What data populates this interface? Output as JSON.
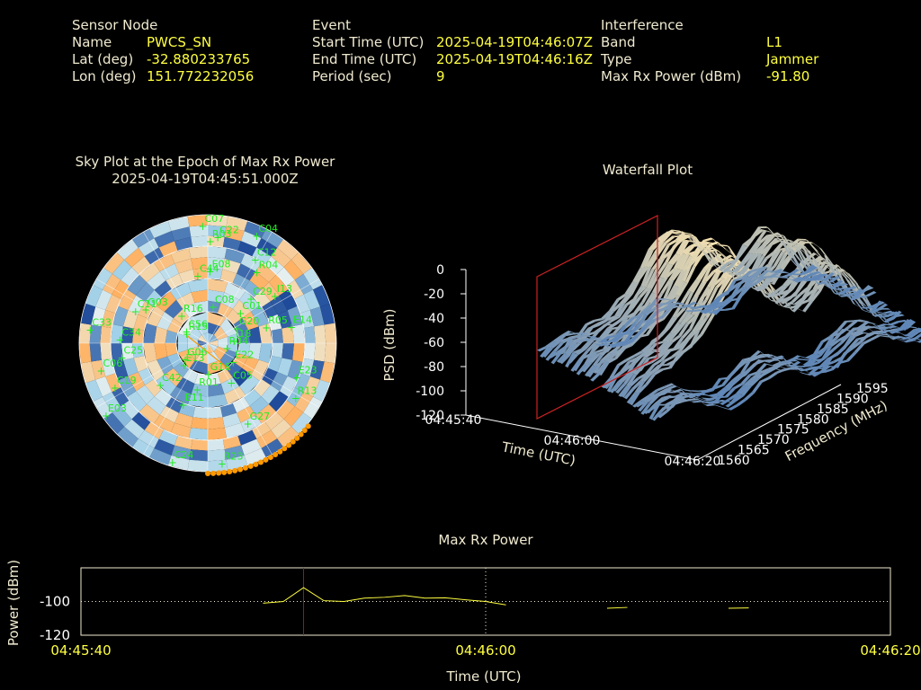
{
  "header": {
    "sensor": {
      "heading": "Sensor Node",
      "rows": [
        {
          "label": "Name",
          "value": "PWCS_SN"
        },
        {
          "label": "Lat (deg)",
          "value": "-32.880233765"
        },
        {
          "label": "Lon (deg)",
          "value": "151.772232056"
        }
      ]
    },
    "event": {
      "heading": "Event",
      "rows": [
        {
          "label": "Start Time (UTC)",
          "value": "2025-04-19T04:46:07Z"
        },
        {
          "label": "End Time (UTC)",
          "value": "2025-04-19T04:46:16Z"
        },
        {
          "label": "Period (sec)",
          "value": "9"
        }
      ]
    },
    "interference": {
      "heading": "Interference",
      "rows": [
        {
          "label": "Band",
          "value": "L1"
        },
        {
          "label": "Type",
          "value": "Jammer"
        },
        {
          "label": "Max Rx Power (dBm)",
          "value": "-91.80"
        }
      ]
    }
  },
  "chart_data": [
    {
      "type": "scatter",
      "title": "Sky Plot at the Epoch of Max Rx Power",
      "subtitle": "2025-04-19T04:45:51.000Z",
      "satellites": [
        "G03",
        "E03",
        "C42",
        "R04",
        "C56",
        "I18",
        "E14",
        "C01",
        "E23",
        "C34",
        "R15",
        "C33",
        "C04",
        "C08",
        "R23",
        "R01",
        "C06",
        "R03",
        "E13",
        "C12",
        "C05",
        "C19",
        "I13",
        "C07",
        "C25",
        "R16",
        "E22",
        "G27",
        "C44",
        "E11",
        "R04",
        "G20",
        "R13",
        "C24",
        "G16",
        "E08",
        "C11",
        "R05",
        "G06",
        "C29",
        "C22"
      ],
      "colors": {
        "satellite": "#22ee22",
        "high": "#ffb060",
        "low": "#1e4a9a",
        "mid": "#a0d0e8",
        "marker": "#ff9900"
      }
    },
    {
      "type": "area",
      "title": "Waterfall Plot",
      "xlabel": "Time (UTC)",
      "ylabel": "Frequency (MHz)",
      "zlabel": "PSD (dBm)",
      "x_ticks": [
        "04:45:40",
        "04:46:00",
        "04:46:20"
      ],
      "y_ticks": [
        "1560",
        "1565",
        "1570",
        "1575",
        "1580",
        "1585",
        "1590",
        "1595"
      ],
      "z_ticks": [
        "0",
        "-20",
        "-40",
        "-60",
        "-80",
        "-100",
        "-120"
      ],
      "zlim": [
        -120,
        0
      ],
      "ylim": [
        1560,
        1595
      ],
      "colors": {
        "peak": "#f4e0b0",
        "low": "#4a7ab8",
        "marker": "#cc2222"
      }
    },
    {
      "type": "line",
      "title": "Max Rx Power",
      "xlabel": "Time (UTC)",
      "ylabel": "Power (dBm)",
      "x_ticks": [
        "04:45:40",
        "04:46:00",
        "04:46:20"
      ],
      "y_ticks": [
        "-100",
        "-120"
      ],
      "xlim": [
        0,
        40
      ],
      "ylim": [
        -120,
        -80
      ],
      "marker_time": 11,
      "series": [
        {
          "values": [
            [
              9,
              -101
            ],
            [
              10,
              -100
            ],
            [
              11,
              -91.8
            ],
            [
              12,
              -99.5
            ],
            [
              13,
              -100
            ],
            [
              14,
              -98
            ],
            [
              15,
              -97.5
            ],
            [
              16,
              -96.5
            ],
            [
              17,
              -98
            ],
            [
              18,
              -97.8
            ],
            [
              19,
              -99
            ],
            [
              20,
              -100
            ],
            [
              21,
              -102
            ]
          ]
        },
        {
          "values": [
            [
              26,
              -104
            ],
            [
              27,
              -103.5
            ]
          ]
        },
        {
          "values": [
            [
              32,
              -104
            ],
            [
              33,
              -103.8
            ]
          ]
        }
      ],
      "colors": {
        "line": "#ffff40",
        "marker": "#cc0000",
        "grid": "#f0ead0"
      }
    }
  ]
}
